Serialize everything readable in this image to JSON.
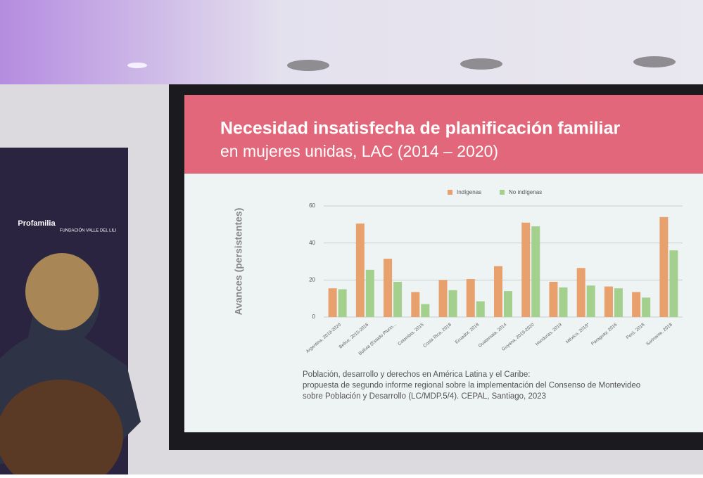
{
  "chart_data": {
    "type": "bar",
    "title": "Necesidad insatisfecha de planificación familiar",
    "subtitle": "en mujeres unidas, LAC (2014 – 2020)",
    "y_label": "Avances (persistentes)",
    "categories": [
      "Argentina, 2019-2020",
      "Belice, 2015-2016",
      "Bolivia (Estado Plurin...",
      "Colombia, 2015",
      "Costa Rica, 2018",
      "Ecuador, 2018",
      "Guatemala, 2014",
      "Guyana, 2019-2020",
      "Honduras, 2019",
      "México, 2018*",
      "Paraguay, 2016",
      "Perú, 2018",
      "Suriname, 2018"
    ],
    "series": [
      {
        "name": "Indígenas",
        "color": "#e8a06c",
        "values": [
          15.5,
          50.5,
          31.5,
          13.5,
          20,
          20.5,
          27.5,
          51,
          19,
          26.5,
          16.5,
          13.5,
          54
        ]
      },
      {
        "name": "No indígenas",
        "color": "#a3d08c",
        "values": [
          15,
          25.5,
          19,
          7,
          14.5,
          8.5,
          14,
          49,
          16,
          17,
          15.5,
          10.5,
          36
        ]
      }
    ],
    "ylim": [
      0,
      60
    ],
    "yticks": [
      0,
      20,
      40,
      60
    ],
    "grid": true,
    "legend": "top",
    "source": [
      "Población, desarrollo y derechos en América Latina y el Caribe:",
      "propuesta de segundo informe regional sobre la implementación del Consenso de Montevideo",
      "sobre Población y Desarrollo (LC/MDP.5/4). CEPAL, Santiago, 2023"
    ]
  },
  "banner": {
    "logos": [
      "Profamilia",
      "FUNDACIÓN VALLE DEL LILI"
    ]
  }
}
